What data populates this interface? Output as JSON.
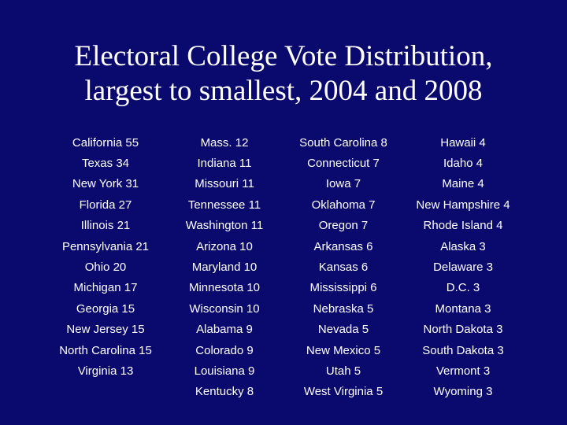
{
  "title": {
    "line1": "Electoral College Vote Distribution,",
    "line2": "largest to smallest, 2004 and 2008"
  },
  "colors": {
    "background": "#0a0a6e",
    "text": "#ffffff"
  },
  "rows": [
    [
      "California 55",
      "Mass. 12",
      "South Carolina 8",
      "Hawaii 4"
    ],
    [
      "Texas 34",
      "Indiana 11",
      "Connecticut 7",
      "Idaho 4"
    ],
    [
      "New York 31",
      "Missouri 11",
      "Iowa 7",
      "Maine 4"
    ],
    [
      "Florida 27",
      "Tennessee 11",
      "Oklahoma 7",
      "New Hampshire 4"
    ],
    [
      "Illinois 21",
      "Washington 11",
      "Oregon 7",
      "Rhode Island 4"
    ],
    [
      "Pennsylvania 21",
      "Arizona 10",
      "Arkansas 6",
      "Alaska 3"
    ],
    [
      "Ohio 20",
      "Maryland 10",
      "Kansas 6",
      "Delaware 3"
    ],
    [
      "Michigan 17",
      "Minnesota 10",
      "Mississippi 6",
      "D.C. 3"
    ],
    [
      "Georgia 15",
      "Wisconsin 10",
      "Nebraska 5",
      "Montana 3"
    ],
    [
      "New Jersey 15",
      "Alabama 9",
      "Nevada 5",
      "North Dakota 3"
    ],
    [
      "North Carolina 15",
      "Colorado 9",
      "New Mexico 5",
      "South Dakota 3"
    ],
    [
      "Virginia 13",
      "Louisiana 9",
      "Utah 5",
      "Vermont 3"
    ],
    [
      "",
      "Kentucky 8",
      "West Virginia 5",
      "Wyoming 3"
    ]
  ]
}
